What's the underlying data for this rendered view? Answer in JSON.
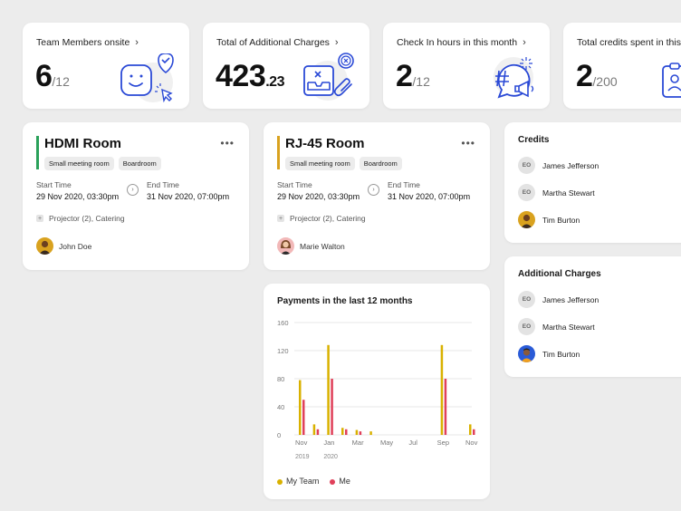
{
  "stats": [
    {
      "title": "Team Members onsite",
      "value": "6",
      "decimal": "",
      "denominator": "/12",
      "icon": "smiley-check-icon"
    },
    {
      "title": "Total of Additional Charges",
      "value": "423",
      "decimal": ".23",
      "denominator": "",
      "icon": "inbox-paperclip-icon"
    },
    {
      "title": "Check In hours in this month",
      "value": "2",
      "decimal": "",
      "denominator": "/12",
      "icon": "hashtag-megaphone-icon"
    },
    {
      "title": "Total credits spent in this",
      "value": "2",
      "decimal": "",
      "denominator": "/200",
      "icon": "badge-icon"
    }
  ],
  "chevron": "›",
  "more_glyph": "•••",
  "rooms": [
    {
      "name": "HDMI Room",
      "accent": "#2aa15a",
      "tags": [
        "Small meeting room",
        "Boardroom"
      ],
      "start_label": "Start Time",
      "start_value": "29 Nov 2020, 03:30pm",
      "end_label": "End Time",
      "end_value": "31 Nov 2020, 07:00pm",
      "amenities": "Projector (2), Catering",
      "person": "John Doe",
      "avatar_color": "#d9a21f"
    },
    {
      "name": "RJ-45 Room",
      "accent": "#d9a21f",
      "tags": [
        "Small meeting room",
        "Boardroom"
      ],
      "start_label": "Start Time",
      "start_value": "29 Nov 2020, 03:30pm",
      "end_label": "End Time",
      "end_value": "31 Nov 2020, 07:00pm",
      "amenities": "Projector (2), Catering",
      "person": "Marie Walton",
      "avatar_color": "#f2b8b8"
    }
  ],
  "credits": {
    "title": "Credits",
    "people": [
      {
        "initials": "EO",
        "name": "James Jefferson"
      },
      {
        "initials": "EO",
        "name": "Martha Stewart"
      },
      {
        "initials": "",
        "name": "Tim Burton",
        "avatar_color": "#d9a21f"
      }
    ]
  },
  "charges": {
    "title": "Additional Charges",
    "people": [
      {
        "initials": "EO",
        "name": "James Jefferson"
      },
      {
        "initials": "EO",
        "name": "Martha Stewart"
      },
      {
        "initials": "",
        "name": "Tim Burton",
        "avatar_color": "#2a5bd7"
      }
    ]
  },
  "colors": {
    "team": "#d9b100",
    "me": "#e0405a",
    "icon_blue": "#2a49d6"
  },
  "chart_data": {
    "type": "bar",
    "title": "Payments in the last 12 months",
    "xlabel": "",
    "ylabel": "",
    "ylim": [
      0,
      160
    ],
    "yticks": [
      0,
      40,
      80,
      120,
      160
    ],
    "x_tick_labels": [
      "Nov",
      "Jan",
      "Mar",
      "May",
      "Jul",
      "Sep",
      "Nov"
    ],
    "x_year_labels": [
      "2019",
      "2020"
    ],
    "categories": [
      "Nov 2019",
      "Dec 2019",
      "Jan 2020",
      "Feb 2020",
      "Mar 2020",
      "Apr 2020",
      "May 2020",
      "Jun 2020",
      "Jul 2020",
      "Aug 2020",
      "Sep 2020",
      "Oct 2020",
      "Nov 2020"
    ],
    "series": [
      {
        "name": "My Team",
        "values": [
          78,
          15,
          128,
          10,
          7,
          5,
          0,
          0,
          0,
          0,
          128,
          0,
          15
        ]
      },
      {
        "name": "Me",
        "values": [
          50,
          8,
          80,
          8,
          5,
          0,
          0,
          0,
          0,
          0,
          80,
          0,
          8
        ]
      }
    ]
  }
}
